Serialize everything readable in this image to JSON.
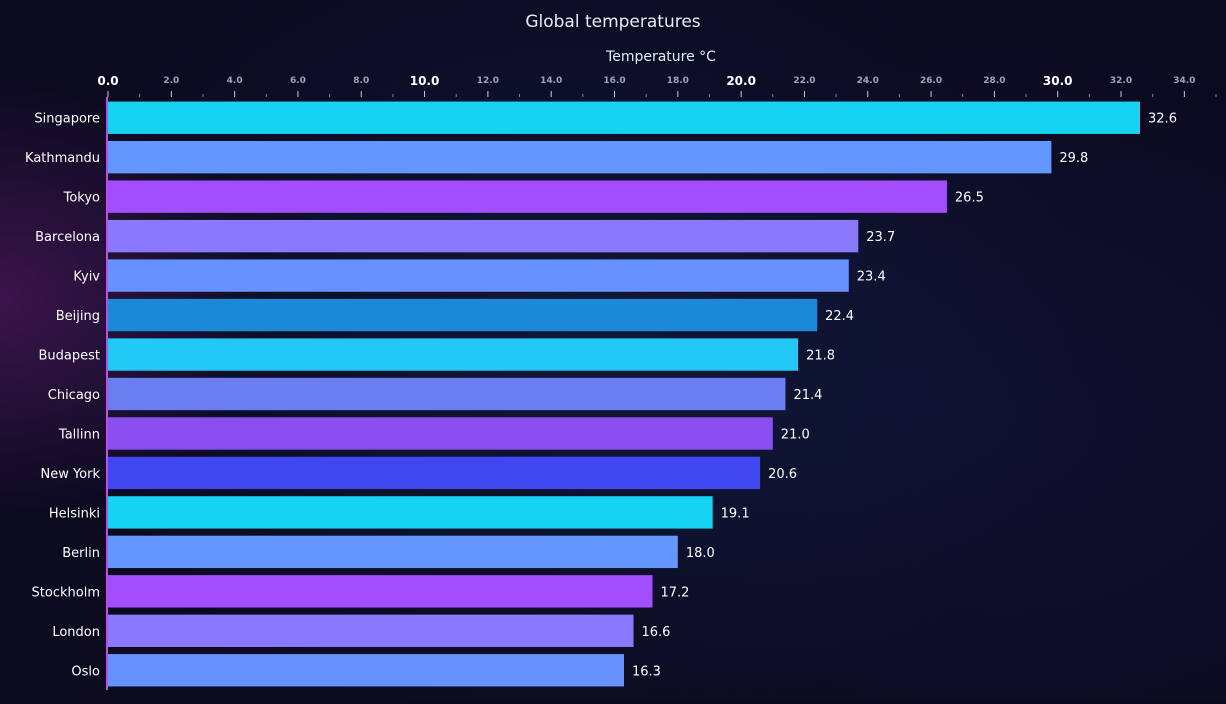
{
  "chart_data": {
    "type": "bar",
    "orientation": "horizontal",
    "title": "Global temperatures",
    "xlabel": "Temperature °C",
    "ylabel": "",
    "xlim": [
      0,
      35
    ],
    "axis_position": "top",
    "major_ticks": [
      "0.0",
      "10.0",
      "20.0",
      "30.0"
    ],
    "minor_ticks": [
      "2.0",
      "4.0",
      "6.0",
      "8.0",
      "12.0",
      "14.0",
      "16.0",
      "18.0",
      "22.0",
      "24.0",
      "26.0",
      "28.0",
      "32.0",
      "34.0"
    ],
    "categories": [
      "Singapore",
      "Kathmandu",
      "Tokyo",
      "Barcelona",
      "Kyiv",
      "Beijing",
      "Budapest",
      "Chicago",
      "Tallinn",
      "New York",
      "Helsinki",
      "Berlin",
      "Stockholm",
      "London",
      "Oslo"
    ],
    "values": [
      32.6,
      29.8,
      26.5,
      23.7,
      23.4,
      22.4,
      21.8,
      21.4,
      21.0,
      20.6,
      19.1,
      18.0,
      17.2,
      16.6,
      16.3
    ],
    "value_labels": [
      "32.6",
      "29.8",
      "26.5",
      "23.7",
      "23.4",
      "22.4",
      "21.8",
      "21.4",
      "21.0",
      "20.6",
      "19.1",
      "18.0",
      "17.2",
      "16.6",
      "16.3"
    ],
    "colors": [
      "#15d4f2",
      "#6396ff",
      "#a24dff",
      "#8a79ff",
      "#6791ff",
      "#1c88d8",
      "#22c8f6",
      "#6a7ef2",
      "#8b4ef0",
      "#4046f0",
      "#15d4f2",
      "#6396ff",
      "#a24dff",
      "#8a79ff",
      "#6791ff"
    ],
    "grid": false,
    "legend": "none"
  }
}
